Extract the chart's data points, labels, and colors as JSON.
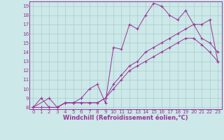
{
  "xlabel": "Windchill (Refroidissement éolien,°C)",
  "background_color": "#cce8e8",
  "line_color": "#993399",
  "grid_color": "#aacccc",
  "xlim": [
    -0.5,
    23.5
  ],
  "ylim": [
    7.8,
    19.5
  ],
  "xticks": [
    0,
    1,
    2,
    3,
    4,
    5,
    6,
    7,
    8,
    9,
    10,
    11,
    12,
    13,
    14,
    15,
    16,
    17,
    18,
    19,
    20,
    21,
    22,
    23
  ],
  "yticks": [
    8,
    9,
    10,
    11,
    12,
    13,
    14,
    15,
    16,
    17,
    18,
    19
  ],
  "line1_x": [
    0,
    1,
    2,
    3,
    4,
    5,
    6,
    7,
    8,
    9,
    10,
    11,
    12,
    13,
    14,
    15,
    16,
    17,
    18,
    19,
    20,
    21,
    22,
    23
  ],
  "line1_y": [
    8.0,
    8.0,
    8.0,
    8.0,
    8.5,
    8.5,
    8.5,
    8.5,
    8.5,
    9.0,
    10.0,
    11.0,
    12.0,
    12.5,
    13.0,
    13.5,
    14.0,
    14.5,
    15.0,
    15.5,
    15.5,
    14.8,
    14.0,
    13.0
  ],
  "line2_x": [
    0,
    1,
    2,
    3,
    4,
    5,
    6,
    7,
    8,
    9,
    10,
    11,
    12,
    13,
    14,
    15,
    16,
    17,
    18,
    19,
    20,
    21,
    22,
    23
  ],
  "line2_y": [
    8.0,
    9.0,
    8.0,
    8.0,
    8.5,
    8.5,
    8.5,
    8.5,
    8.5,
    9.0,
    10.5,
    11.5,
    12.5,
    13.0,
    14.0,
    14.5,
    15.0,
    15.5,
    16.0,
    16.5,
    17.0,
    17.0,
    17.5,
    13.0
  ],
  "line3_x": [
    0,
    2,
    3,
    4,
    5,
    6,
    7,
    8,
    9,
    10,
    11,
    12,
    13,
    14,
    15,
    16,
    17,
    18,
    19,
    20,
    21,
    22,
    23
  ],
  "line3_y": [
    8.0,
    9.0,
    8.0,
    8.5,
    8.5,
    9.0,
    10.0,
    10.5,
    8.5,
    14.5,
    14.3,
    17.0,
    16.5,
    18.0,
    19.3,
    19.0,
    18.0,
    17.5,
    18.5,
    17.0,
    15.5,
    15.0,
    14.0
  ],
  "tick_fontsize": 5.2,
  "label_fontsize": 6.0
}
